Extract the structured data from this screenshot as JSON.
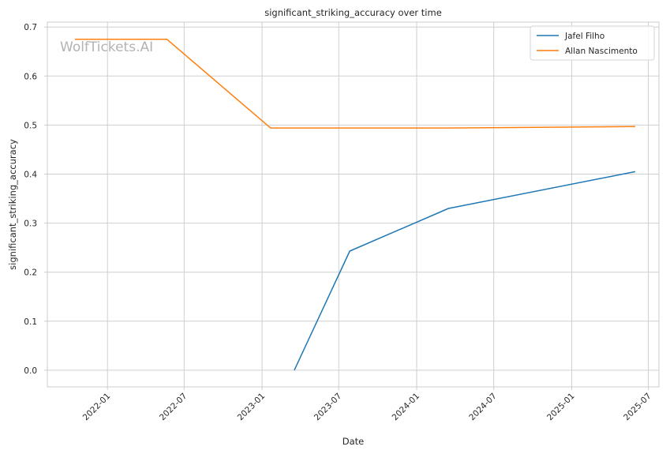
{
  "chart_data": {
    "type": "line",
    "title": "significant_striking_accuracy over time",
    "xlabel": "Date",
    "ylabel": "significant_striking_accuracy",
    "watermark": "WolfTickets.AI",
    "grid": true,
    "legend_position": "top-right",
    "xlim": [
      "2021-08-12",
      "2025-07-26"
    ],
    "ylim": [
      -0.034,
      0.71
    ],
    "x_ticks": [
      "2022-01",
      "2022-07",
      "2023-01",
      "2023-07",
      "2024-01",
      "2024-07",
      "2025-01",
      "2025-07"
    ],
    "y_ticks": [
      "0.0",
      "0.1",
      "0.2",
      "0.3",
      "0.4",
      "0.5",
      "0.6",
      "0.7"
    ],
    "series": [
      {
        "name": "Jafel Filho",
        "color": "#1f77b4",
        "points": [
          {
            "x": "2023-03-18",
            "y": 0.0
          },
          {
            "x": "2023-07-27",
            "y": 0.243
          },
          {
            "x": "2024-03-16",
            "y": 0.33
          },
          {
            "x": "2025-05-31",
            "y": 0.405
          }
        ]
      },
      {
        "name": "Allan Nascimento",
        "color": "#ff7f0e",
        "points": [
          {
            "x": "2021-10-16",
            "y": 0.675
          },
          {
            "x": "2022-05-21",
            "y": 0.675
          },
          {
            "x": "2023-01-21",
            "y": 0.494
          },
          {
            "x": "2024-03-16",
            "y": 0.494
          },
          {
            "x": "2025-05-31",
            "y": 0.497
          }
        ]
      }
    ]
  }
}
